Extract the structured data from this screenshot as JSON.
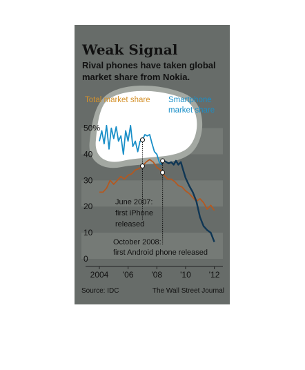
{
  "chart_data": {
    "type": "line",
    "title": "Weak Signal",
    "subtitle": [
      "Rival phones have taken global",
      "market share from Nokia."
    ],
    "xlabel": "",
    "ylabel": "",
    "xlim": [
      2004,
      2012.5
    ],
    "ylim": [
      0,
      52
    ],
    "x_ticks": [
      "2004",
      "'06",
      "'08",
      "'10",
      "'12"
    ],
    "x_tick_values": [
      2004,
      2006,
      2008,
      2010,
      2012
    ],
    "y_ticks": [
      "50%",
      "40",
      "30",
      "20",
      "10",
      "0"
    ],
    "y_tick_values": [
      50,
      40,
      30,
      20,
      10,
      0
    ],
    "grid": true,
    "series": [
      {
        "name": "Total market share",
        "color": "#b5581f",
        "points": [
          [
            2004.0,
            25.5
          ],
          [
            2004.25,
            25.5
          ],
          [
            2004.5,
            27
          ],
          [
            2004.75,
            30
          ],
          [
            2005.0,
            28.5
          ],
          [
            2005.25,
            30
          ],
          [
            2005.5,
            31.5
          ],
          [
            2005.75,
            30.5
          ],
          [
            2006.0,
            32
          ],
          [
            2006.25,
            32.5
          ],
          [
            2006.5,
            34
          ],
          [
            2006.75,
            34.5
          ],
          [
            2007.0,
            35.5
          ],
          [
            2007.25,
            37
          ],
          [
            2007.5,
            38
          ],
          [
            2007.75,
            37
          ],
          [
            2008.0,
            35
          ],
          [
            2008.25,
            34
          ],
          [
            2008.5,
            32
          ],
          [
            2008.75,
            30.5
          ],
          [
            2009.0,
            30.5
          ],
          [
            2009.25,
            29.5
          ],
          [
            2009.5,
            28
          ],
          [
            2009.75,
            27.5
          ],
          [
            2010.0,
            26
          ],
          [
            2010.25,
            25
          ],
          [
            2010.5,
            23.5
          ],
          [
            2010.75,
            22
          ],
          [
            2011.0,
            23
          ],
          [
            2011.25,
            21.5
          ],
          [
            2011.5,
            19
          ],
          [
            2011.75,
            20.5
          ],
          [
            2012.0,
            18.5
          ]
        ]
      },
      {
        "name": "Smartphone market share",
        "color": "#1a8fc8",
        "points": [
          [
            2004.0,
            45
          ],
          [
            2004.17,
            49
          ],
          [
            2004.33,
            44
          ],
          [
            2004.5,
            51
          ],
          [
            2004.67,
            42
          ],
          [
            2004.83,
            50
          ],
          [
            2005.0,
            46
          ],
          [
            2005.17,
            50.5
          ],
          [
            2005.33,
            45
          ],
          [
            2005.5,
            47
          ],
          [
            2005.67,
            40
          ],
          [
            2005.83,
            49
          ],
          [
            2006.0,
            45
          ],
          [
            2006.17,
            51
          ],
          [
            2006.33,
            43
          ],
          [
            2006.5,
            45
          ],
          [
            2006.67,
            41
          ],
          [
            2006.83,
            45
          ],
          [
            2007.0,
            45.5
          ],
          [
            2007.17,
            47.5
          ],
          [
            2007.33,
            47
          ],
          [
            2007.5,
            47.5
          ],
          [
            2007.67,
            44
          ],
          [
            2007.83,
            41
          ],
          [
            2008.0,
            40
          ],
          [
            2008.17,
            37
          ],
          [
            2008.33,
            36
          ],
          [
            2008.5,
            37.5
          ],
          [
            2008.67,
            37
          ],
          [
            2008.83,
            36.5
          ],
          [
            2009.0,
            37
          ],
          [
            2009.17,
            36
          ],
          [
            2009.33,
            37.5
          ],
          [
            2009.5,
            36
          ],
          [
            2009.67,
            37
          ],
          [
            2009.83,
            34
          ],
          [
            2010.0,
            31
          ],
          [
            2010.25,
            28
          ],
          [
            2010.5,
            25.5
          ],
          [
            2010.75,
            22
          ],
          [
            2011.0,
            16
          ],
          [
            2011.25,
            12.5
          ],
          [
            2011.5,
            11
          ],
          [
            2011.75,
            10
          ],
          [
            2012.0,
            6.5
          ]
        ]
      }
    ],
    "legend": [
      {
        "lines": [
          "Total market share"
        ],
        "color": "#d4912a",
        "placement": "top-left"
      },
      {
        "lines": [
          "Smartphone",
          "market share"
        ],
        "color": "#1a8fc8",
        "placement": "top-right"
      }
    ],
    "annotations": [
      {
        "lines": [
          "June 2007:",
          "first iPhone",
          "released"
        ],
        "x": 2007.0,
        "y": 35.5
      },
      {
        "lines": [
          "October 2008:",
          "first Android phone released"
        ],
        "x": 2008.4,
        "y": 33
      }
    ]
  },
  "footer": {
    "source": "Source: IDC",
    "credit": "The Wall Street Journal"
  },
  "colors": {
    "background": "#676c69",
    "highlight": "#cdd0cb",
    "total_line": "#b5581f",
    "smartphone_line": "#1a8fc8",
    "smartphone_dark": "#0f3654"
  }
}
